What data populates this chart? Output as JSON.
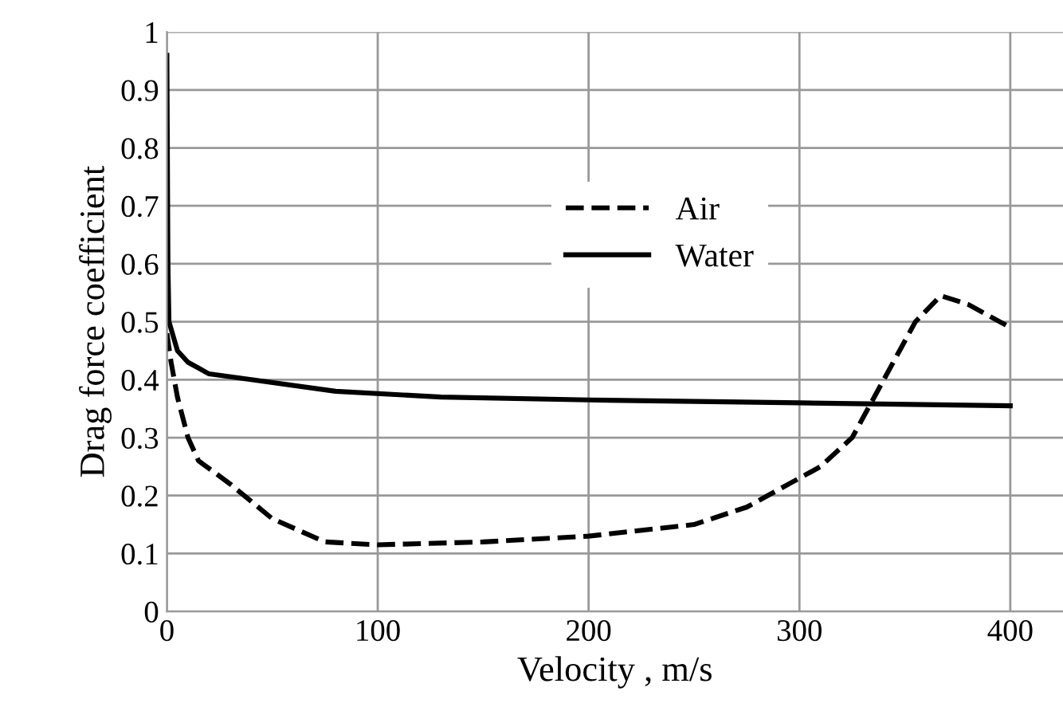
{
  "chart_data": {
    "type": "line",
    "xlabel": "Velocity , m/s",
    "ylabel": "Drag force coefficient",
    "xlim": [
      0,
      425
    ],
    "xticks": [
      0,
      100,
      200,
      300,
      400
    ],
    "ylim": [
      0,
      1
    ],
    "yticks": [
      0,
      0.1,
      0.2,
      0.3,
      0.4,
      0.5,
      0.6,
      0.7,
      0.8,
      0.9,
      1
    ],
    "grid": true,
    "legend": "center",
    "marker": "none",
    "series": [
      {
        "name": "Air",
        "color": "#000000",
        "line_style": "dashed",
        "x": [
          0,
          2,
          5,
          10,
          15,
          30,
          50,
          75,
          100,
          150,
          200,
          250,
          275,
          295,
          310,
          325,
          340,
          355,
          367,
          380,
          400
        ],
        "values": [
          0.48,
          0.43,
          0.37,
          0.3,
          0.26,
          0.22,
          0.16,
          0.12,
          0.115,
          0.12,
          0.13,
          0.15,
          0.18,
          0.22,
          0.25,
          0.3,
          0.4,
          0.5,
          0.545,
          0.53,
          0.49
        ]
      },
      {
        "name": "Water",
        "color": "#000000",
        "line_style": "solid",
        "x": [
          0,
          0.5,
          1,
          5,
          10,
          20,
          40,
          80,
          130,
          200,
          300,
          400
        ],
        "values": [
          0.96,
          0.6,
          0.5,
          0.45,
          0.43,
          0.41,
          0.4,
          0.38,
          0.37,
          0.365,
          0.36,
          0.355
        ]
      }
    ]
  }
}
